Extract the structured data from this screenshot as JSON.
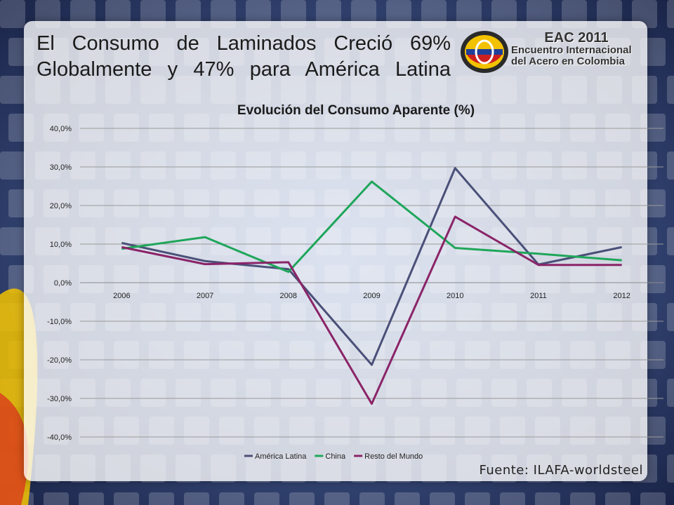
{
  "slide": {
    "title_line1": "El Consumo de Laminados Creció 69%",
    "title_line2": "Globalmente y 47% para América Latina",
    "source": "Fuente: ILAFA-worldsteel"
  },
  "logo": {
    "line1": "EAC 2011",
    "line2": "Encuentro Internacional",
    "line3": "del Acero en Colombia"
  },
  "colors": {
    "background": "#2b3a63",
    "america_latina": "#4a5078",
    "china": "#1fa65a",
    "resto_del_mundo": "#8a2468"
  },
  "chart_data": {
    "type": "line",
    "title": "Evolución del Consumo Aparente (%)",
    "x": [
      "2006",
      "2007",
      "2008",
      "2009",
      "2010",
      "2011",
      "2012"
    ],
    "ylim": [
      -40,
      40
    ],
    "yticks": [
      "40,0%",
      "30,0%",
      "20,0%",
      "10,0%",
      "0,0%",
      "-10,0%",
      "-20,0%",
      "-30,0%",
      "-40,0%"
    ],
    "ytick_values": [
      40,
      30,
      20,
      10,
      0,
      -10,
      -20,
      -30,
      -40
    ],
    "grid": true,
    "legend_position": "bottom",
    "series": [
      {
        "name": "América Latina",
        "color": "#4a5078",
        "values": [
          10.3,
          5.6,
          3.5,
          -21.3,
          29.7,
          4.7,
          9.2
        ]
      },
      {
        "name": "China",
        "color": "#1fa65a",
        "values": [
          8.8,
          11.8,
          2.8,
          26.2,
          9.0,
          7.5,
          5.8
        ]
      },
      {
        "name": "Resto del Mundo",
        "color": "#8a2468",
        "values": [
          9.2,
          4.8,
          5.3,
          -31.4,
          17.1,
          4.6,
          4.6
        ]
      }
    ]
  }
}
